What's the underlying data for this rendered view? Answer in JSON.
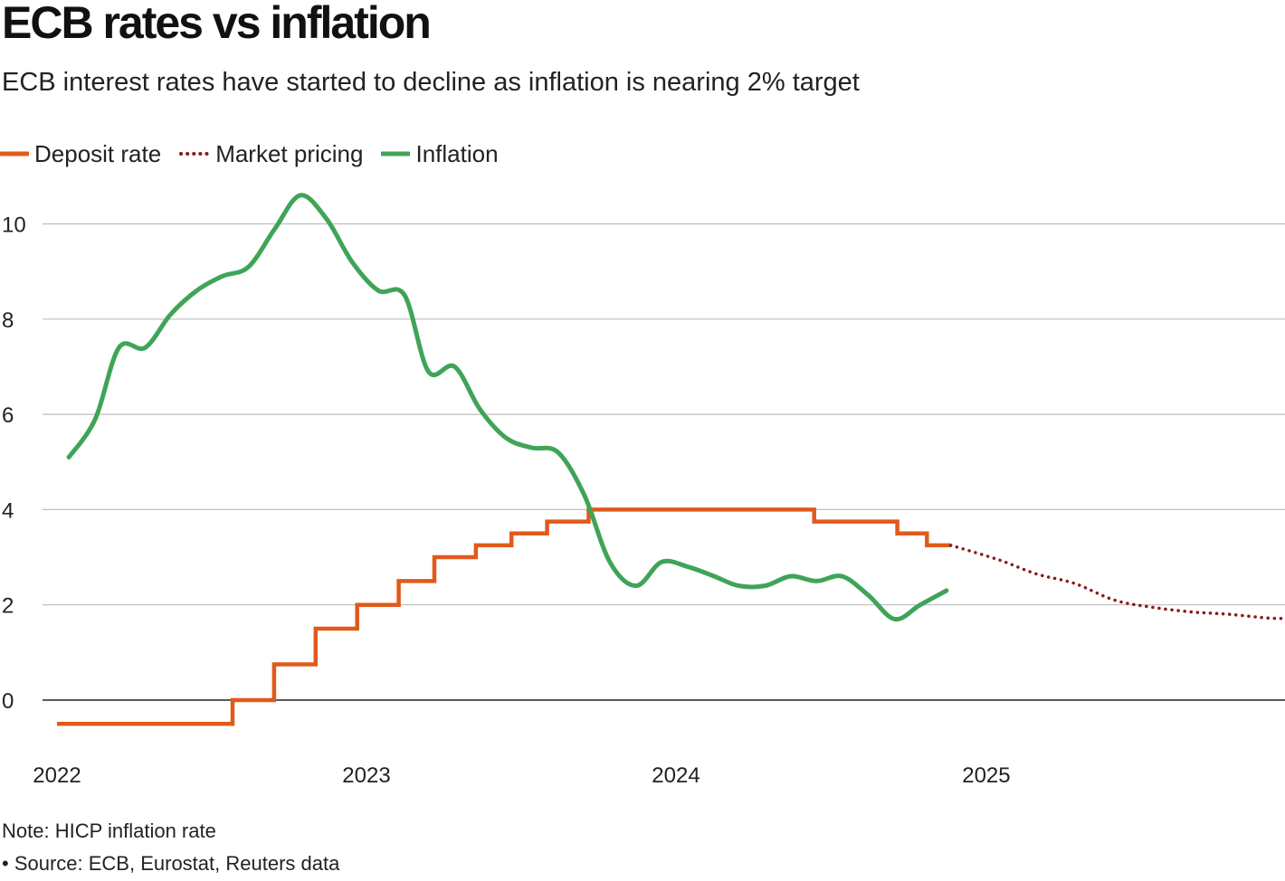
{
  "title": "ECB rates vs inflation",
  "subtitle": "ECB interest rates have started to decline as inflation is nearing 2% target",
  "legend": [
    {
      "label": "Deposit rate",
      "color": "#e05a1b",
      "style": "solid"
    },
    {
      "label": "Market pricing",
      "color": "#8b1a1a",
      "style": "dotted"
    },
    {
      "label": "Inflation",
      "color": "#3fa457",
      "style": "solid"
    }
  ],
  "note": "Note: HICP inflation rate",
  "source": "• Source: ECB, Eurostat, Reuters data",
  "chart_data": {
    "type": "line",
    "title": "ECB rates vs inflation",
    "subtitle": "ECB interest rates have started to decline as inflation is nearing 2% target",
    "x_type": "date",
    "xlim": [
      "2022-01-01",
      "2026-01-01"
    ],
    "ylim": [
      -1,
      10.8
    ],
    "y_ticks": [
      0,
      2,
      4,
      6,
      8,
      10
    ],
    "x_ticks": [
      "2022-01-01",
      "2023-01-01",
      "2024-01-01",
      "2025-01-01"
    ],
    "x_tick_labels": [
      "2022",
      "2023",
      "2024",
      "2025"
    ],
    "grid": true,
    "legend_position": "top-left",
    "series": [
      {
        "name": "Deposit rate",
        "color": "#e05a1b",
        "style": "step",
        "points": [
          [
            "2022-01-01",
            -0.5
          ],
          [
            "2022-07-27",
            0.0
          ],
          [
            "2022-09-14",
            0.75
          ],
          [
            "2022-11-02",
            1.5
          ],
          [
            "2022-12-21",
            2.0
          ],
          [
            "2023-02-08",
            2.5
          ],
          [
            "2023-03-22",
            3.0
          ],
          [
            "2023-05-10",
            3.25
          ],
          [
            "2023-06-21",
            3.5
          ],
          [
            "2023-08-02",
            3.75
          ],
          [
            "2023-09-20",
            4.0
          ],
          [
            "2024-06-12",
            3.75
          ],
          [
            "2024-09-18",
            3.5
          ],
          [
            "2024-10-23",
            3.25
          ],
          [
            "2024-11-20",
            3.25
          ]
        ]
      },
      {
        "name": "Market pricing",
        "color": "#8b1a1a",
        "style": "dotted",
        "points": [
          [
            "2024-11-20",
            3.25
          ],
          [
            "2025-01-15",
            2.95
          ],
          [
            "2025-03-01",
            2.65
          ],
          [
            "2025-04-15",
            2.45
          ],
          [
            "2025-06-01",
            2.1
          ],
          [
            "2025-07-15",
            1.95
          ],
          [
            "2025-09-01",
            1.85
          ],
          [
            "2025-10-15",
            1.8
          ],
          [
            "2025-12-01",
            1.72
          ],
          [
            "2025-12-28",
            1.72
          ]
        ]
      },
      {
        "name": "Inflation",
        "color": "#3fa457",
        "style": "solid",
        "points": [
          [
            "2022-01-15",
            5.1
          ],
          [
            "2022-02-15",
            5.9
          ],
          [
            "2022-03-15",
            7.4
          ],
          [
            "2022-04-15",
            7.4
          ],
          [
            "2022-05-15",
            8.1
          ],
          [
            "2022-06-15",
            8.6
          ],
          [
            "2022-07-15",
            8.9
          ],
          [
            "2022-08-15",
            9.1
          ],
          [
            "2022-09-15",
            9.9
          ],
          [
            "2022-10-15",
            10.6
          ],
          [
            "2022-11-15",
            10.1
          ],
          [
            "2022-12-15",
            9.2
          ],
          [
            "2023-01-15",
            8.6
          ],
          [
            "2023-02-15",
            8.5
          ],
          [
            "2023-03-15",
            6.9
          ],
          [
            "2023-04-15",
            7.0
          ],
          [
            "2023-05-15",
            6.1
          ],
          [
            "2023-06-15",
            5.5
          ],
          [
            "2023-07-15",
            5.3
          ],
          [
            "2023-08-15",
            5.2
          ],
          [
            "2023-09-15",
            4.3
          ],
          [
            "2023-10-15",
            2.9
          ],
          [
            "2023-11-15",
            2.4
          ],
          [
            "2023-12-15",
            2.9
          ],
          [
            "2024-01-15",
            2.8
          ],
          [
            "2024-02-15",
            2.6
          ],
          [
            "2024-03-15",
            2.4
          ],
          [
            "2024-04-15",
            2.4
          ],
          [
            "2024-05-15",
            2.6
          ],
          [
            "2024-06-15",
            2.5
          ],
          [
            "2024-07-15",
            2.6
          ],
          [
            "2024-08-15",
            2.2
          ],
          [
            "2024-09-15",
            1.7
          ],
          [
            "2024-10-15",
            2.0
          ],
          [
            "2024-11-15",
            2.3
          ]
        ]
      }
    ]
  }
}
